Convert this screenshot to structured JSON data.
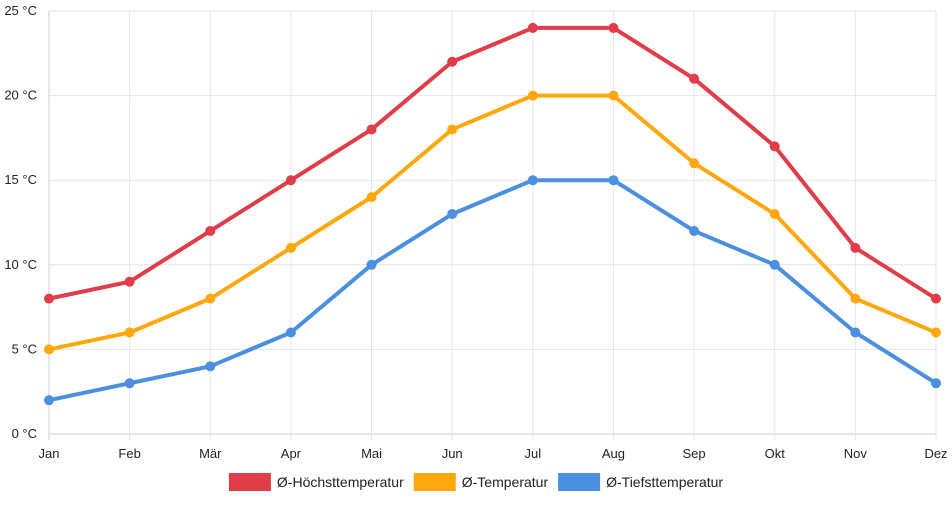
{
  "chart_data": {
    "type": "line",
    "categories": [
      "Jan",
      "Feb",
      "Mär",
      "Apr",
      "Mai",
      "Jun",
      "Jul",
      "Aug",
      "Sep",
      "Okt",
      "Nov",
      "Dez"
    ],
    "y_ticks": [
      {
        "value": 0,
        "label": "0 °C"
      },
      {
        "value": 5,
        "label": "5 °C"
      },
      {
        "value": 10,
        "label": "10 °C"
      },
      {
        "value": 15,
        "label": "15 °C"
      },
      {
        "value": 20,
        "label": "20 °C"
      },
      {
        "value": 25,
        "label": "25 °C"
      }
    ],
    "ylim": [
      0,
      25
    ],
    "grid": true,
    "legend_position": "bottom",
    "series": [
      {
        "name": "Ø-Höchsttemperatur",
        "color": "#e03c4a",
        "values": [
          8,
          9,
          12,
          15,
          18,
          22,
          24,
          24,
          21,
          17,
          11,
          8
        ]
      },
      {
        "name": "Ø-Temperatur",
        "color": "#ffa80e",
        "values": [
          5,
          6,
          8,
          11,
          14,
          18,
          20,
          20,
          16,
          13,
          8,
          6
        ]
      },
      {
        "name": "Ø-Tiefsttemperatur",
        "color": "#4a8fe0",
        "values": [
          2,
          3,
          4,
          6,
          10,
          13,
          15,
          15,
          12,
          10,
          6,
          3
        ]
      }
    ]
  }
}
